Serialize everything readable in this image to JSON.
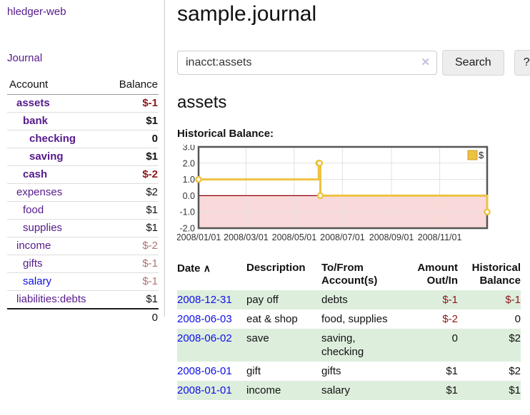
{
  "colors": {
    "link_purple": "#551a8b",
    "link_blue": "#0f0fe8",
    "negative": "#8b1717",
    "negative_muted": "#b27272",
    "row_stripe_green": "#ddeedd",
    "series_gold": "#edc240",
    "legend_border": "#c9a227",
    "zero_line": "#8b0000",
    "negative_region": "#f9d9d9",
    "grid_line": "#e2e2e2",
    "plot_border": "#555555"
  },
  "sidebar": {
    "brand": "hledger-web",
    "journal_link": "Journal",
    "account_table": {
      "headers": [
        "Account",
        "Balance"
      ],
      "rows": [
        {
          "name": "assets",
          "depth": 1,
          "bold": true,
          "link": "purple",
          "balance": "$-1",
          "balclass": "neg"
        },
        {
          "name": "bank",
          "depth": 2,
          "bold": true,
          "link": "purple",
          "balance": "$1",
          "balclass": ""
        },
        {
          "name": "checking",
          "depth": 3,
          "bold": true,
          "link": "purple",
          "balance": "0",
          "balclass": ""
        },
        {
          "name": "saving",
          "depth": 3,
          "bold": true,
          "link": "purple",
          "balance": "$1",
          "balclass": ""
        },
        {
          "name": "cash",
          "depth": 2,
          "bold": true,
          "link": "purple",
          "balance": "$-2",
          "balclass": "neg"
        },
        {
          "name": "expenses",
          "depth": 1,
          "bold": false,
          "link": "purple",
          "balance": "$2",
          "balclass": ""
        },
        {
          "name": "food",
          "depth": 2,
          "bold": false,
          "link": "purple",
          "balance": "$1",
          "balclass": ""
        },
        {
          "name": "supplies",
          "depth": 2,
          "bold": false,
          "link": "purple",
          "balance": "$1",
          "balclass": ""
        },
        {
          "name": "income",
          "depth": 1,
          "bold": false,
          "link": "purple",
          "balance": "$-2",
          "balclass": "negmuted"
        },
        {
          "name": "gifts",
          "depth": 2,
          "bold": false,
          "link": "purple",
          "balance": "$-1",
          "balclass": "negmuted"
        },
        {
          "name": "salary",
          "depth": 2,
          "bold": false,
          "link": "blue",
          "balance": "$-1",
          "balclass": "negmuted"
        },
        {
          "name": "liabilities:debts",
          "depth": 1,
          "bold": false,
          "link": "purple",
          "balance": "$1",
          "balclass": ""
        }
      ],
      "total": "0"
    }
  },
  "main": {
    "title": "sample.journal",
    "search": {
      "value": "inacct:assets",
      "clear_icon": "✕",
      "search_button": "Search",
      "help_button": "?"
    },
    "account_heading": "assets",
    "chart_label": "Historical Balance:",
    "register": {
      "headers": {
        "date": "Date",
        "sort_indicator": "∧",
        "description": "Description",
        "account": "To/From Account(s)",
        "amount": "Amount Out/In",
        "balance": "Historical Balance"
      },
      "rows": [
        {
          "date": "2008-12-31",
          "description": "pay off",
          "accounts": "debts",
          "amount": "$-1",
          "amtclass": "neg",
          "balance": "$-1",
          "balclass": "neg",
          "striped": true
        },
        {
          "date": "2008-06-03",
          "description": "eat & shop",
          "accounts": "food, supplies",
          "amount": "$-2",
          "amtclass": "neg",
          "balance": "0",
          "balclass": "",
          "striped": false
        },
        {
          "date": "2008-06-02",
          "description": "save",
          "accounts": "saving, checking",
          "amount": "0",
          "amtclass": "",
          "balance": "$2",
          "balclass": "",
          "striped": true
        },
        {
          "date": "2008-06-01",
          "description": "gift",
          "accounts": "gifts",
          "amount": "$1",
          "amtclass": "",
          "balance": "$2",
          "balclass": "",
          "striped": false
        },
        {
          "date": "2008-01-01",
          "description": "income",
          "accounts": "salary",
          "amount": "$1",
          "amtclass": "",
          "balance": "$1",
          "balclass": "",
          "striped": true
        }
      ]
    }
  },
  "chart_data": {
    "type": "line",
    "step": true,
    "title": "Historical Balance:",
    "series": [
      {
        "name": "$",
        "color": "#edc240",
        "points": [
          {
            "date": "2008-01-01",
            "value": 1
          },
          {
            "date": "2008-06-01",
            "value": 2
          },
          {
            "date": "2008-06-02",
            "value": 2
          },
          {
            "date": "2008-06-03",
            "value": 0
          },
          {
            "date": "2008-12-31",
            "value": -1
          }
        ]
      }
    ],
    "ylim": [
      -2,
      3
    ],
    "yticks": [
      {
        "value": 3,
        "label": "3.0"
      },
      {
        "value": 2,
        "label": "2.0"
      },
      {
        "value": 1,
        "label": "1.0"
      },
      {
        "value": 0,
        "label": "0.0"
      },
      {
        "value": -1,
        "label": "-1.0"
      },
      {
        "value": -2,
        "label": "-2.0"
      }
    ],
    "xticks": [
      {
        "date": "2008-01-01",
        "label": "2008/01/01"
      },
      {
        "date": "2008-03-01",
        "label": "2008/03/01"
      },
      {
        "date": "2008-05-01",
        "label": "2008/05/01"
      },
      {
        "date": "2008-07-01",
        "label": "2008/07/01"
      },
      {
        "date": "2008-09-01",
        "label": "2008/09/01"
      },
      {
        "date": "2008-11-01",
        "label": "2008/11/01"
      }
    ],
    "legend": {
      "label": "$",
      "position": "top-right"
    },
    "grid": true,
    "negative_region_shaded": true,
    "zero_line": true
  }
}
